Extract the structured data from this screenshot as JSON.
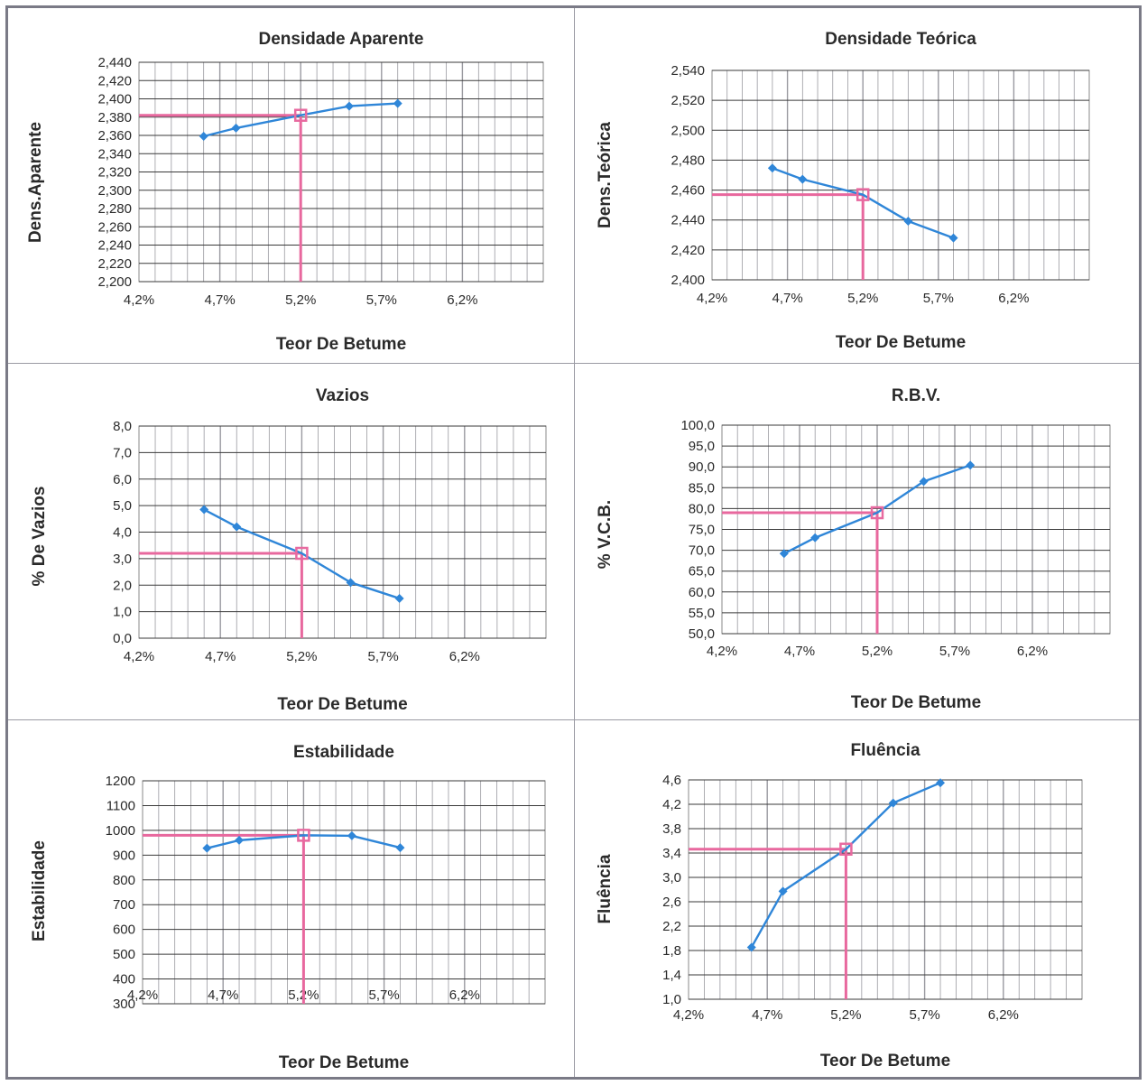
{
  "chart_data": [
    {
      "type": "line",
      "title": "Densidade Aparente",
      "xlabel": "Teor De Betume",
      "ylabel": "Dens.Aparente",
      "xlim": [
        4.2,
        6.7
      ],
      "ylim": [
        2.2,
        2.44
      ],
      "x_ticks": [
        "4,2%",
        "4,7%",
        "5,2%",
        "5,7%",
        "6,2%"
      ],
      "y_ticks": [
        "2,200",
        "2,220",
        "2,240",
        "2,260",
        "2,280",
        "2,300",
        "2,320",
        "2,340",
        "2,360",
        "2,380",
        "2,400",
        "2,420",
        "2,440"
      ],
      "series": [
        {
          "x": [
            4.6,
            4.8,
            5.5,
            5.8
          ],
          "y": [
            2.359,
            2.368,
            2.392,
            2.395
          ]
        }
      ],
      "design_point": {
        "x": 5.2,
        "y": 2.382
      },
      "grid": true
    },
    {
      "type": "line",
      "title": "Densidade Teórica",
      "xlabel": "Teor De Betume",
      "ylabel": "Dens.Teórica",
      "xlim": [
        4.2,
        6.7
      ],
      "ylim": [
        2.4,
        2.55
      ],
      "x_ticks": [
        "4,2%",
        "4,7%",
        "5,2%",
        "5,7%",
        "6,2%"
      ],
      "y_ticks": [
        "2,400",
        "2,420",
        "2,440",
        "2,460",
        "2,480",
        "2,500",
        "2,520",
        "2,540"
      ],
      "series": [
        {
          "x": [
            4.6,
            4.8,
            5.5,
            5.8
          ],
          "y": [
            2.48,
            2.472,
            2.442,
            2.43
          ]
        }
      ],
      "design_point": {
        "x": 5.2,
        "y": 2.461
      },
      "grid": true
    },
    {
      "type": "line",
      "title": "Vazios",
      "xlabel": "Teor De Betume",
      "ylabel": "% De Vazios",
      "xlim": [
        4.2,
        6.7
      ],
      "ylim": [
        0,
        8
      ],
      "x_ticks": [
        "4,2%",
        "4,7%",
        "5,2%",
        "5,7%",
        "6,2%"
      ],
      "y_ticks": [
        "0,0",
        "1,0",
        "2,0",
        "3,0",
        "4,0",
        "5,0",
        "6,0",
        "7,0",
        "8,0"
      ],
      "series": [
        {
          "x": [
            4.6,
            4.8,
            5.5,
            5.8
          ],
          "y": [
            4.85,
            4.2,
            2.1,
            1.5
          ]
        }
      ],
      "design_point": {
        "x": 5.2,
        "y": 3.2
      },
      "grid": true
    },
    {
      "type": "line",
      "title": "R.B.V.",
      "xlabel": "Teor De Betume",
      "ylabel": "% V.C.B.",
      "xlim": [
        4.2,
        6.7
      ],
      "ylim": [
        50,
        100
      ],
      "x_ticks": [
        "4,2%",
        "4,7%",
        "5,2%",
        "5,7%",
        "6,2%"
      ],
      "y_ticks": [
        "50,0",
        "55,0",
        "60,0",
        "65,0",
        "70,0",
        "75,0",
        "80,0",
        "85,0",
        "90,0",
        "95,0",
        "100,0"
      ],
      "series": [
        {
          "x": [
            4.6,
            4.8,
            5.5,
            5.8
          ],
          "y": [
            69.2,
            73.0,
            86.5,
            90.4
          ]
        }
      ],
      "design_point": {
        "x": 5.2,
        "y": 79.0
      },
      "grid": true
    },
    {
      "type": "line",
      "title": "Estabilidade",
      "xlabel": "Teor De Betume",
      "ylabel": "Estabilidade",
      "xlim": [
        4.2,
        6.7
      ],
      "ylim": [
        300,
        1200
      ],
      "x_ticks": [
        "4,2%",
        "4,7%",
        "5,2%",
        "5,7%",
        "6,2%"
      ],
      "y_ticks": [
        "300",
        "400",
        "500",
        "600",
        "700",
        "800",
        "900",
        "1000",
        "1100",
        "1200"
      ],
      "series": [
        {
          "x": [
            4.6,
            4.8,
            5.5,
            5.8
          ],
          "y": [
            928,
            960,
            978,
            930
          ]
        }
      ],
      "design_point": {
        "x": 5.2,
        "y": 980
      },
      "grid": true
    },
    {
      "type": "line",
      "title": "Fluência",
      "xlabel": "Teor De Betume",
      "ylabel": "Fluência",
      "xlim": [
        4.2,
        6.7
      ],
      "ylim": [
        1.0,
        4.8
      ],
      "x_ticks": [
        "4,2%",
        "4,7%",
        "5,2%",
        "5,7%",
        "6,2%"
      ],
      "y_ticks": [
        "1,0",
        "1,4",
        "1,8",
        "2,2",
        "2,6",
        "3,0",
        "3,4",
        "3,8",
        "4,2",
        "4,6"
      ],
      "series": [
        {
          "x": [
            4.6,
            4.8,
            5.5,
            5.8
          ],
          "y": [
            1.9,
            2.87,
            4.4,
            4.75
          ]
        }
      ],
      "design_point": {
        "x": 5.2,
        "y": 3.6
      },
      "grid": true
    }
  ],
  "colors": {
    "series": "#2f86d8",
    "marker_design": "#e86aa0",
    "reference_line": "#e8689e",
    "grid": "#3a3a3a",
    "text": "#2a2a2a"
  }
}
